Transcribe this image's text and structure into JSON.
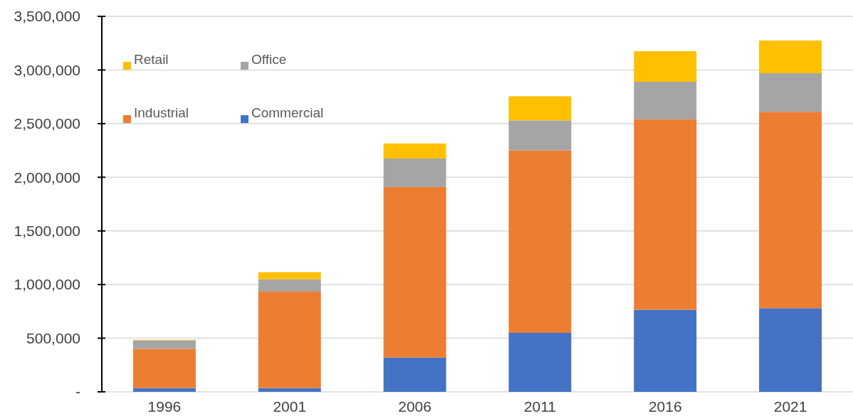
{
  "chart_data": {
    "type": "bar",
    "stacked": true,
    "categories": [
      "1996",
      "2001",
      "2006",
      "2011",
      "2016",
      "2021"
    ],
    "series": [
      {
        "name": "Commercial",
        "color": "#4472c4",
        "values": [
          35000,
          35000,
          320000,
          550000,
          765000,
          780000
        ]
      },
      {
        "name": "Industrial",
        "color": "#ed7d31",
        "values": [
          365000,
          900000,
          1590000,
          1700000,
          1775000,
          1830000
        ]
      },
      {
        "name": "Office",
        "color": "#a5a5a5",
        "values": [
          80000,
          115000,
          265000,
          280000,
          350000,
          360000
        ]
      },
      {
        "name": "Retail",
        "color": "#ffc000",
        "values": [
          5000,
          65000,
          140000,
          225000,
          285000,
          305000
        ]
      }
    ],
    "ylim": [
      0,
      3500000
    ],
    "yticks": [
      {
        "value": 0,
        "label": "-"
      },
      {
        "value": 500000,
        "label": "500,000"
      },
      {
        "value": 1000000,
        "label": "1,000,000"
      },
      {
        "value": 1500000,
        "label": "1,500,000"
      },
      {
        "value": 2000000,
        "label": "2,000,000"
      },
      {
        "value": 2500000,
        "label": "2,500,000"
      },
      {
        "value": 3000000,
        "label": "3,000,000"
      },
      {
        "value": 3500000,
        "label": "3,500,000"
      }
    ],
    "grid": "y",
    "legend": "top left"
  }
}
